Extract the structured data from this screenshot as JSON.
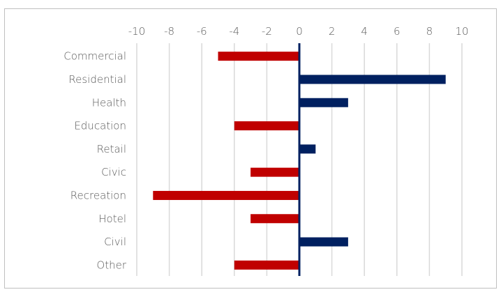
{
  "chart_data": {
    "type": "bar",
    "orientation": "horizontal",
    "title": "",
    "xlabel": "",
    "ylabel": "",
    "categories": [
      "Commercial",
      "Residential",
      "Health",
      "Education",
      "Retail",
      "Civic",
      "Recreation",
      "Hotel",
      "Civil",
      "Other"
    ],
    "values": [
      -5,
      9,
      3,
      -4,
      1,
      -3,
      -9,
      -3,
      3,
      -4
    ],
    "xlim": [
      -10,
      10
    ],
    "ticks": [
      -10,
      -8,
      -6,
      -4,
      -2,
      0,
      2,
      4,
      6,
      8,
      10
    ],
    "tick_labels": [
      "-10",
      "-8",
      "-6",
      "-4",
      "-2",
      "0",
      "2",
      "4",
      "6",
      "8",
      "10"
    ],
    "x_axis_position": "top",
    "grid": true,
    "legend": "none",
    "colors": {
      "positive": "#002060",
      "negative": "#C00000",
      "grid": "#d9d9d9",
      "axis": "#002060"
    }
  }
}
